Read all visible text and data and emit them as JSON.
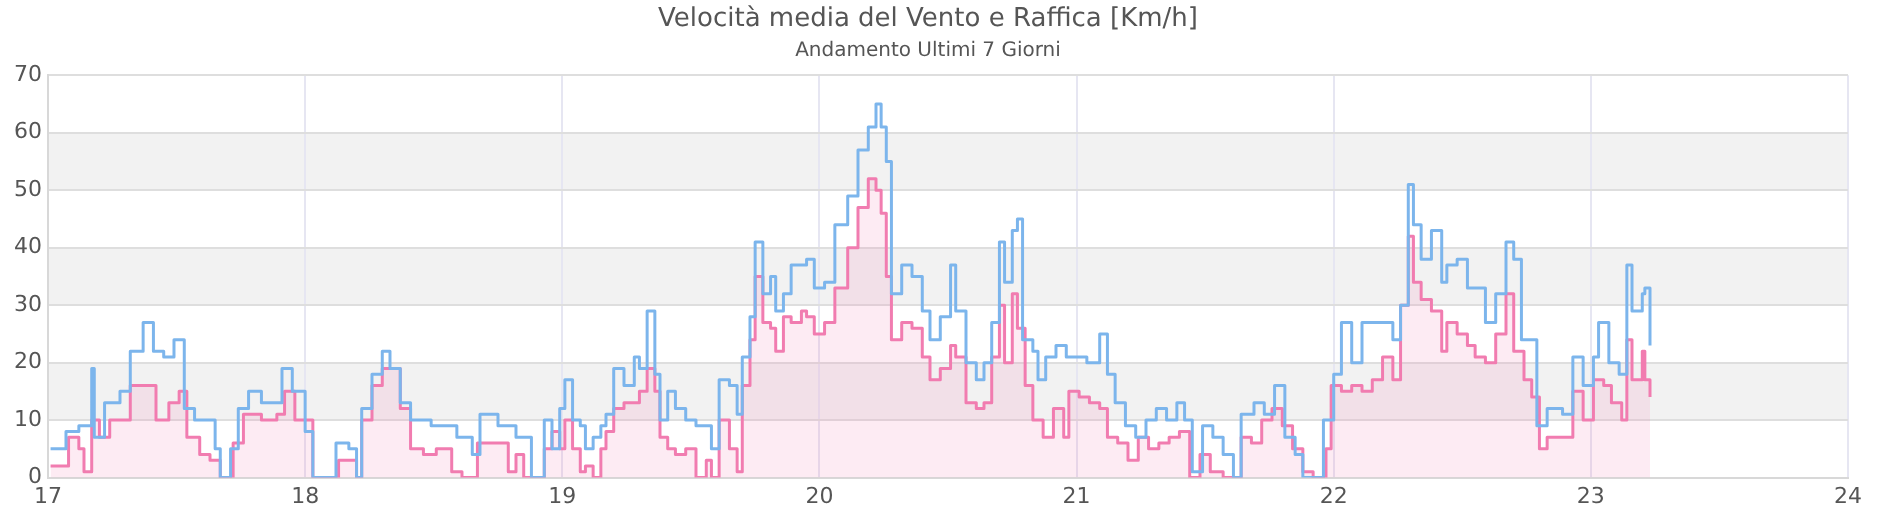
{
  "chart_data": {
    "type": "line",
    "title": "Velocità media del Vento e Raffica [Km/h]",
    "subtitle": "Andamento Ultimi 7 Giorni",
    "xlim": [
      17,
      24
    ],
    "xticks": [
      17,
      18,
      19,
      20,
      21,
      22,
      23,
      24
    ],
    "ylim": [
      0,
      70
    ],
    "yticks": [
      0,
      10,
      20,
      30,
      40,
      50,
      60,
      70
    ],
    "grid": true,
    "legend": false,
    "bands": [
      {
        "axis": "y",
        "from": 10,
        "to": 20,
        "color": "#f2f2f2"
      },
      {
        "axis": "y",
        "from": 30,
        "to": 40,
        "color": "#f2f2f2"
      },
      {
        "axis": "y",
        "from": 50,
        "to": 60,
        "color": "#f2f2f2"
      }
    ],
    "series": [
      {
        "type": "step",
        "color": "#7cb5ec",
        "x": [
          17.01,
          17.07,
          17.12,
          17.15,
          17.17,
          17.18,
          17.22,
          17.28,
          17.32,
          17.37,
          17.41,
          17.45,
          17.49,
          17.53,
          17.57,
          17.61,
          17.65,
          17.67,
          17.71,
          17.74,
          17.78,
          17.83,
          17.88,
          17.91,
          17.95,
          18.0,
          18.03,
          18.07,
          18.12,
          18.17,
          18.2,
          18.22,
          18.26,
          18.3,
          18.33,
          18.37,
          18.41,
          18.49,
          18.54,
          18.59,
          18.65,
          18.68,
          18.75,
          18.82,
          18.85,
          18.88,
          18.92,
          18.93,
          18.96,
          18.99,
          19.01,
          19.04,
          19.07,
          19.09,
          19.12,
          19.15,
          19.17,
          19.2,
          19.24,
          19.28,
          19.3,
          19.33,
          19.36,
          19.38,
          19.41,
          19.44,
          19.48,
          19.52,
          19.56,
          19.58,
          19.61,
          19.65,
          19.68,
          19.7,
          19.73,
          19.75,
          19.78,
          19.81,
          19.83,
          19.86,
          19.89,
          19.93,
          19.95,
          19.98,
          20.02,
          20.06,
          20.11,
          20.15,
          20.19,
          20.22,
          20.24,
          20.26,
          20.28,
          20.32,
          20.36,
          20.4,
          20.43,
          20.47,
          20.51,
          20.53,
          20.57,
          20.61,
          20.64,
          20.67,
          20.7,
          20.72,
          20.75,
          20.77,
          20.79,
          20.83,
          20.85,
          20.88,
          20.92,
          20.96,
          21.0,
          21.04,
          21.09,
          21.12,
          21.15,
          21.19,
          21.23,
          21.27,
          21.31,
          21.35,
          21.39,
          21.42,
          21.45,
          21.49,
          21.53,
          21.57,
          21.61,
          21.64,
          21.69,
          21.73,
          21.77,
          21.81,
          21.85,
          21.88,
          21.92,
          21.96,
          22.0,
          22.03,
          22.07,
          22.11,
          22.15,
          22.19,
          22.23,
          22.26,
          22.29,
          22.31,
          22.34,
          22.38,
          22.42,
          22.44,
          22.48,
          22.52,
          22.55,
          22.59,
          22.63,
          22.67,
          22.7,
          22.73,
          22.77,
          22.79,
          22.83,
          22.89,
          22.93,
          22.97,
          23.01,
          23.03,
          23.07,
          23.11,
          23.14,
          23.16,
          23.2,
          23.21,
          23.23
        ],
        "values": [
          5,
          8,
          9,
          9,
          19,
          7,
          13,
          15,
          22,
          27,
          22,
          21,
          24,
          12,
          10,
          10,
          5,
          0,
          5,
          12,
          15,
          13,
          13,
          19,
          15,
          8,
          0,
          0,
          6,
          5,
          0,
          12,
          18,
          22,
          19,
          13,
          10,
          9,
          9,
          7,
          4,
          11,
          9,
          7,
          7,
          0,
          0,
          10,
          5,
          12,
          17,
          10,
          9,
          5,
          7,
          9,
          11,
          19,
          16,
          21,
          19,
          29,
          18,
          10,
          15,
          12,
          10,
          9,
          9,
          5,
          17,
          16,
          11,
          21,
          28,
          41,
          32,
          35,
          29,
          32,
          37,
          37,
          38,
          33,
          34,
          44,
          49,
          57,
          61,
          65,
          61,
          55,
          32,
          37,
          35,
          29,
          24,
          28,
          37,
          29,
          20,
          17,
          20,
          27,
          41,
          34,
          43,
          45,
          24,
          22,
          17,
          21,
          23,
          21,
          21,
          20,
          25,
          18,
          13,
          9,
          7,
          10,
          12,
          10,
          13,
          10,
          1,
          9,
          7,
          4,
          0,
          11,
          13,
          11,
          16,
          7,
          4,
          0,
          0,
          10,
          18,
          27,
          20,
          27,
          27,
          27,
          24,
          30,
          51,
          44,
          38,
          43,
          34,
          37,
          38,
          33,
          33,
          27,
          32,
          41,
          38,
          24,
          24,
          9,
          12,
          11,
          21,
          16,
          21,
          27,
          20,
          18,
          37,
          29,
          32,
          33,
          23
        ]
      },
      {
        "type": "area",
        "color": "#f17cb0",
        "x": [
          17.01,
          17.08,
          17.12,
          17.14,
          17.17,
          17.2,
          17.24,
          17.28,
          17.32,
          17.37,
          17.42,
          17.47,
          17.51,
          17.54,
          17.59,
          17.63,
          17.67,
          17.72,
          17.76,
          17.83,
          17.89,
          17.92,
          17.96,
          18.0,
          18.03,
          18.11,
          18.13,
          18.2,
          18.22,
          18.26,
          18.3,
          18.33,
          18.37,
          18.41,
          18.46,
          18.51,
          18.57,
          18.61,
          18.67,
          18.75,
          18.79,
          18.82,
          18.85,
          18.88,
          18.92,
          18.93,
          18.96,
          18.99,
          19.01,
          19.04,
          19.07,
          19.09,
          19.12,
          19.15,
          19.17,
          19.2,
          19.24,
          19.28,
          19.3,
          19.33,
          19.36,
          19.38,
          19.41,
          19.44,
          19.48,
          19.52,
          19.56,
          19.58,
          19.61,
          19.65,
          19.68,
          19.7,
          19.73,
          19.75,
          19.78,
          19.81,
          19.83,
          19.86,
          19.89,
          19.93,
          19.95,
          19.98,
          20.02,
          20.06,
          20.11,
          20.15,
          20.19,
          20.22,
          20.24,
          20.26,
          20.28,
          20.32,
          20.36,
          20.4,
          20.43,
          20.47,
          20.51,
          20.53,
          20.57,
          20.61,
          20.64,
          20.67,
          20.7,
          20.72,
          20.75,
          20.77,
          20.8,
          20.83,
          20.87,
          20.91,
          20.95,
          20.97,
          21.01,
          21.05,
          21.09,
          21.12,
          21.16,
          21.2,
          21.24,
          21.28,
          21.32,
          21.36,
          21.4,
          21.44,
          21.48,
          21.52,
          21.57,
          21.61,
          21.64,
          21.68,
          21.72,
          21.76,
          21.8,
          21.84,
          21.88,
          21.92,
          21.97,
          21.99,
          22.03,
          22.07,
          22.11,
          22.15,
          22.19,
          22.23,
          22.26,
          22.29,
          22.31,
          22.34,
          22.38,
          22.42,
          22.44,
          22.48,
          22.52,
          22.55,
          22.59,
          22.63,
          22.67,
          22.7,
          22.74,
          22.77,
          22.8,
          22.83,
          22.89,
          22.93,
          22.97,
          23.01,
          23.05,
          23.08,
          23.12,
          23.14,
          23.16,
          23.2,
          23.21,
          23.23
        ],
        "values": [
          2,
          7,
          5,
          1,
          10,
          7,
          10,
          10,
          16,
          16,
          10,
          13,
          15,
          7,
          4,
          3,
          0,
          6,
          11,
          10,
          11,
          15,
          10,
          10,
          0,
          0,
          3,
          0,
          10,
          16,
          19,
          19,
          12,
          5,
          4,
          5,
          1,
          0,
          6,
          6,
          1,
          4,
          0,
          0,
          0,
          5,
          8,
          5,
          10,
          5,
          1,
          2,
          0,
          5,
          8,
          12,
          13,
          13,
          15,
          19,
          15,
          7,
          5,
          4,
          5,
          0,
          3,
          0,
          10,
          5,
          1,
          16,
          24,
          35,
          27,
          26,
          22,
          28,
          27,
          29,
          28,
          25,
          27,
          33,
          40,
          47,
          52,
          50,
          46,
          35,
          24,
          27,
          26,
          21,
          17,
          19,
          23,
          21,
          13,
          12,
          13,
          21,
          30,
          20,
          32,
          26,
          16,
          10,
          7,
          12,
          7,
          15,
          14,
          13,
          12,
          7,
          6,
          3,
          7,
          5,
          6,
          7,
          8,
          0,
          4,
          1,
          0,
          0,
          7,
          6,
          10,
          12,
          9,
          5,
          1,
          0,
          5,
          16,
          15,
          16,
          15,
          17,
          21,
          17,
          30,
          42,
          34,
          31,
          29,
          22,
          27,
          25,
          23,
          21,
          20,
          25,
          32,
          22,
          17,
          14,
          5,
          7,
          7,
          15,
          10,
          17,
          16,
          13,
          10,
          24,
          17,
          22,
          17,
          14
        ]
      }
    ]
  }
}
